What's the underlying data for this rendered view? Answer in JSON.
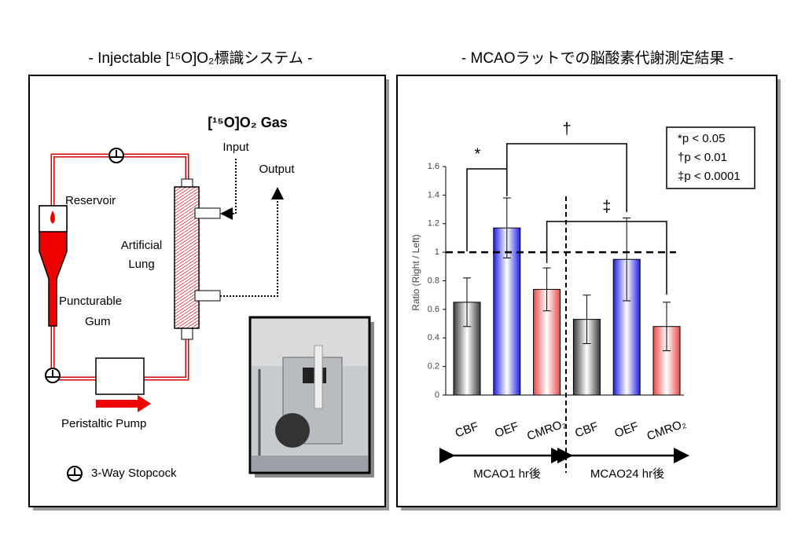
{
  "left_panel": {
    "title": "- Injectable [¹⁵O]O₂標識システム -",
    "gas_label": "[¹⁵O]O₂ Gas",
    "input": "Input",
    "output": "Output",
    "reservoir": "Reservoir",
    "lung": [
      "Artificial",
      "Lung"
    ],
    "gum": [
      "Puncturable",
      "Gum"
    ],
    "pump": "Peristaltic Pump",
    "stopcock": "3-Way Stopcock"
  },
  "chart_data": {
    "type": "bar",
    "title": "- MCAOラットでの脳酸素代謝測定結果 -",
    "categories": [
      "CBF",
      "OEF",
      "CMRO₂",
      "CBF",
      "OEF",
      "CMRO₂"
    ],
    "series": [
      {
        "values": [
          0.65,
          1.17,
          0.74,
          0.53,
          0.95,
          0.48
        ],
        "errors": [
          0.17,
          0.21,
          0.15,
          0.17,
          0.29,
          0.17
        ],
        "colors": [
          "#3a3a3a",
          "#1f1fe0",
          "#e84a4a",
          "#3a3a3a",
          "#1f1fe0",
          "#e84a4a"
        ]
      }
    ],
    "y_label": "Ratio (Right / Left)",
    "ylim": [
      0,
      1.6
    ],
    "yticks": [
      0,
      0.2,
      0.4,
      0.6,
      0.8,
      1,
      1.2,
      1.4,
      1.6
    ],
    "reference_line": 1,
    "groups": [
      "MCAO1 hr後",
      "MCAO24 hr後"
    ],
    "annotations": [
      "*",
      "†",
      "‡"
    ],
    "legend": [
      "*p < 0.05",
      "†p < 0.01",
      "‡p < 0.0001"
    ]
  }
}
